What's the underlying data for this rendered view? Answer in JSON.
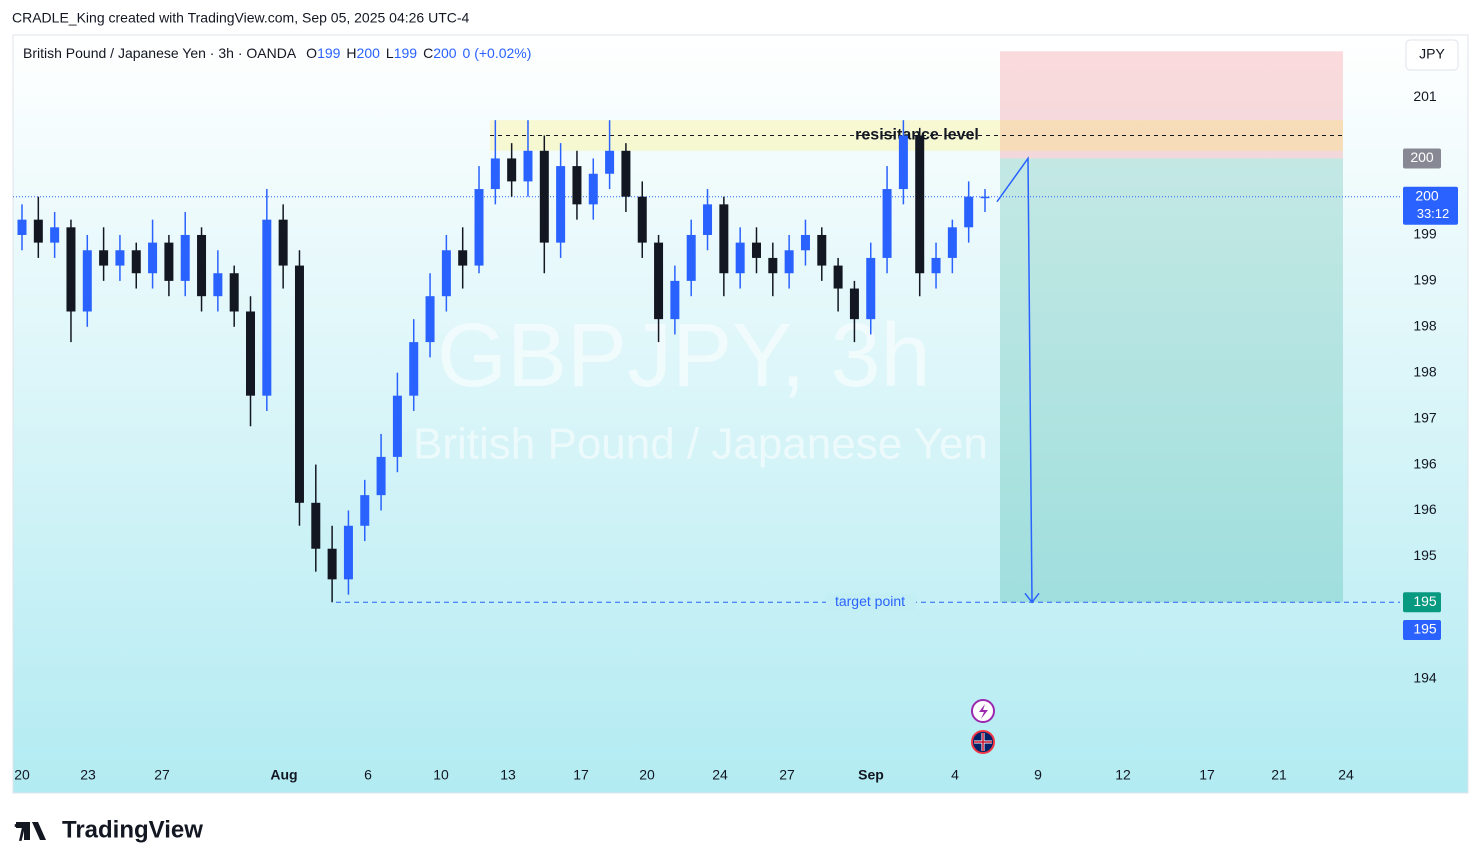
{
  "header": {
    "attribution": "CRADLE_King created with TradingView.com, Sep 05, 2025 04:26 UTC-4",
    "logo": "TradingView"
  },
  "chart_data": {
    "type": "candlestick",
    "symbol": "British Pound / Japanese Yen · 3h · OANDA",
    "ohlc_legend": [
      {
        "key": "O",
        "value": 199
      },
      {
        "key": "H",
        "value": 200
      },
      {
        "key": "L",
        "value": 199
      },
      {
        "key": "C",
        "value": 200
      }
    ],
    "change": "0 (+0.02%)",
    "watermark": "GBPJPY, 3h",
    "watermark_subtitle": "British Pound / Japanese Yen",
    "currency": "JPY",
    "up_color": "#2962ff",
    "down_color": "#131722",
    "open": [
      199.4,
      199.6,
      199.3,
      199.5,
      198.4,
      199.2,
      199.0,
      199.2,
      198.9,
      199.3,
      198.8,
      199.4,
      198.6,
      198.9,
      198.4,
      197.3,
      199.6,
      199.0,
      195.9,
      195.3,
      194.9,
      195.6,
      196.0,
      196.5,
      197.3,
      198.0,
      198.6,
      199.2,
      199.0,
      200.0,
      200.4,
      200.1,
      200.5,
      199.3,
      200.3,
      199.8,
      200.2,
      200.5,
      199.9,
      199.3,
      198.3,
      198.8,
      199.4,
      199.8,
      198.9,
      199.3,
      199.1,
      198.9,
      199.2,
      199.4,
      199.0,
      198.7,
      198.3,
      199.1,
      200.0,
      200.7,
      198.9,
      199.1,
      199.5,
      199.9
    ],
    "high": [
      199.8,
      199.9,
      199.7,
      199.6,
      199.4,
      199.5,
      199.4,
      199.3,
      199.6,
      199.4,
      199.7,
      199.5,
      199.2,
      199.0,
      198.6,
      200.0,
      199.8,
      199.2,
      196.4,
      195.6,
      195.8,
      196.2,
      196.8,
      197.6,
      198.3,
      198.9,
      199.4,
      199.5,
      200.3,
      200.9,
      200.6,
      200.9,
      200.7,
      200.6,
      200.5,
      200.4,
      200.9,
      200.6,
      200.1,
      199.4,
      199.0,
      199.6,
      200.0,
      199.9,
      199.5,
      199.5,
      199.3,
      199.4,
      199.6,
      199.5,
      199.1,
      198.8,
      199.3,
      200.3,
      200.9,
      200.8,
      199.3,
      199.6,
      200.1,
      200.0
    ],
    "low": [
      199.2,
      199.1,
      199.1,
      198.0,
      198.2,
      198.8,
      198.8,
      198.7,
      198.7,
      198.6,
      198.6,
      198.4,
      198.4,
      198.2,
      196.9,
      197.1,
      198.7,
      195.6,
      195.0,
      194.6,
      194.7,
      195.4,
      195.8,
      196.3,
      197.1,
      197.8,
      198.4,
      198.7,
      198.9,
      199.8,
      199.9,
      199.9,
      198.9,
      199.1,
      199.6,
      199.6,
      200.0,
      199.7,
      199.1,
      198.0,
      198.1,
      198.6,
      199.2,
      198.6,
      198.7,
      198.9,
      198.6,
      198.7,
      199.0,
      198.8,
      198.4,
      198.0,
      198.1,
      198.9,
      199.8,
      198.6,
      198.7,
      198.9,
      199.3,
      199.7
    ],
    "close": [
      199.6,
      199.3,
      199.5,
      198.4,
      199.2,
      199.0,
      199.2,
      198.9,
      199.3,
      198.8,
      199.4,
      198.6,
      198.9,
      198.4,
      197.3,
      199.6,
      199.0,
      195.9,
      195.3,
      194.9,
      195.6,
      196.0,
      196.5,
      197.3,
      198.0,
      198.6,
      199.2,
      199.0,
      200.0,
      200.4,
      200.1,
      200.5,
      199.3,
      200.3,
      199.8,
      200.2,
      200.5,
      199.9,
      199.3,
      198.3,
      198.8,
      199.4,
      199.8,
      198.9,
      199.3,
      199.1,
      198.9,
      199.2,
      199.4,
      199.0,
      198.7,
      198.3,
      199.1,
      200.0,
      200.7,
      198.9,
      199.1,
      199.5,
      199.9,
      199.9
    ],
    "ylim": [
      192.5,
      202.0
    ],
    "yticks": [
      {
        "value": 201.2,
        "label": "201"
      },
      {
        "value": 199.4,
        "label": "199"
      },
      {
        "value": 198.8,
        "label": "199"
      },
      {
        "value": 198.2,
        "label": "198"
      },
      {
        "value": 197.6,
        "label": "198"
      },
      {
        "value": 197.0,
        "label": "197"
      },
      {
        "value": 196.4,
        "label": "196"
      },
      {
        "value": 195.8,
        "label": "196"
      },
      {
        "value": 195.2,
        "label": "195"
      },
      {
        "value": 194.2,
        "label": "194"
      },
      {
        "value": 193.6,
        "label": "194"
      }
    ],
    "x_labels": [
      "20",
      "23",
      "27",
      "Aug",
      "6",
      "10",
      "13",
      "17",
      "20",
      "24",
      "27",
      "Sep",
      "4",
      "9",
      "12",
      "17",
      "21",
      "24"
    ],
    "last_price": {
      "value": 199.9,
      "label": "200",
      "countdown": "33:12"
    },
    "resistance": {
      "text": "resisitance level",
      "low": 200.5,
      "high": 200.9
    },
    "position": {
      "stop": 201.8,
      "entry": {
        "value": 200.4,
        "label": "200"
      },
      "target": {
        "value": 194.6,
        "label": "195"
      },
      "target_alt": {
        "value": 194.5,
        "label": "195"
      },
      "target_text": "target point"
    }
  }
}
